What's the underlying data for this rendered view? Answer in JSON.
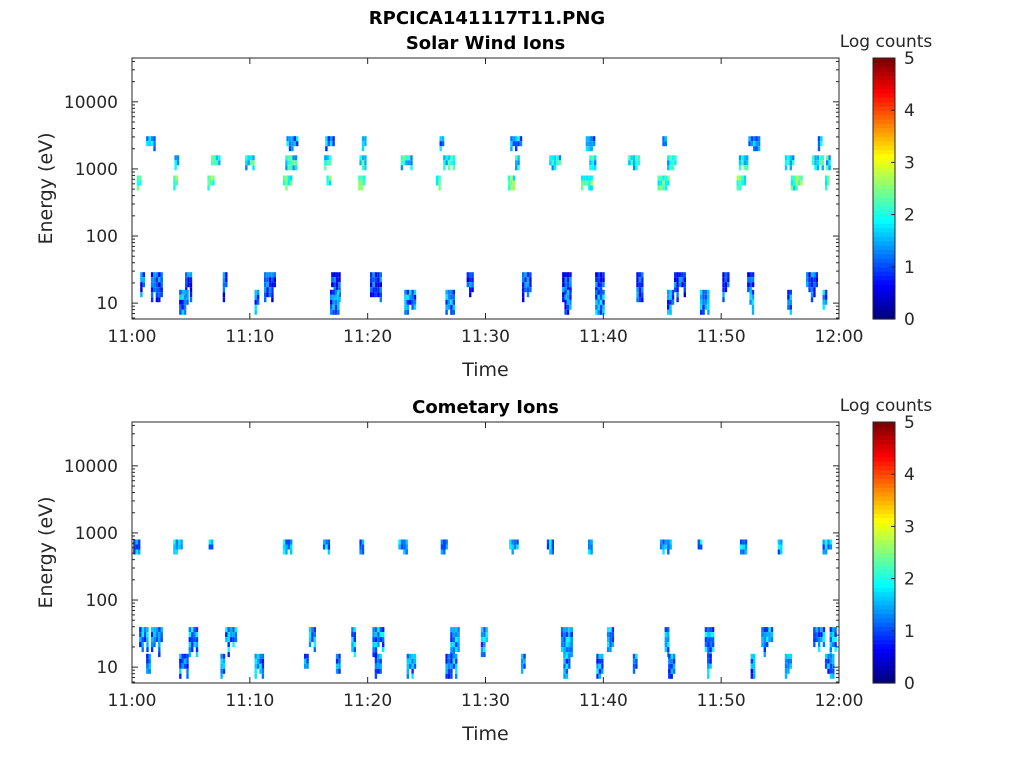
{
  "figure_title": "RPCICA141117T11.PNG",
  "chart_data": [
    {
      "type": "heatmap",
      "title": "Solar Wind Ions",
      "xlabel": "Time",
      "ylabel": "Energy (eV)",
      "x_ticks": [
        "11:00",
        "11:10",
        "11:20",
        "11:30",
        "11:40",
        "11:50",
        "12:00"
      ],
      "x_range_minutes": [
        0,
        60
      ],
      "y_ticks": [
        "10",
        "100",
        "1000",
        "10000"
      ],
      "y_range_eV": [
        5.8,
        45000
      ],
      "y_scale": "log",
      "colorbar": {
        "label": "Log counts",
        "ticks": [
          "0",
          "1",
          "2",
          "3",
          "4",
          "5"
        ],
        "range": [
          0,
          5
        ],
        "colormap": "jet"
      },
      "bands": [
        {
          "energy_eV": 650,
          "level": 2.3,
          "times_min": [
            0.4,
            3.5,
            6.4,
            12.8,
            16.5,
            19.2,
            25.8,
            31.9,
            38.1,
            44.6,
            51.3,
            55.9,
            58.8
          ]
        },
        {
          "energy_eV": 1300,
          "level": 1.9,
          "times_min": [
            3.6,
            6.7,
            9.6,
            13.0,
            16.3,
            19.3,
            22.8,
            26.4,
            32.5,
            35.4,
            38.8,
            42.1,
            45.4,
            51.5,
            55.4,
            57.7,
            58.9
          ]
        },
        {
          "energy_eV": 2500,
          "level": 1.4,
          "times_min": [
            1.2,
            13.1,
            16.4,
            19.5,
            26.1,
            32.1,
            38.5,
            45.0,
            52.3,
            58.2
          ]
        },
        {
          "energy_eV": 22,
          "level": 1.0,
          "times_min": [
            0.7,
            1.6,
            4.5,
            7.7,
            11.2,
            16.9,
            20.2,
            28.4,
            33.1,
            36.5,
            39.3,
            42.8,
            46.0,
            50.1,
            52.2,
            57.2
          ]
        },
        {
          "energy_eV": 12,
          "level": 1.3,
          "times_min": [
            4.0,
            10.4,
            16.8,
            23.1,
            26.6,
            36.7,
            39.3,
            45.4,
            48.2,
            52.4,
            55.6,
            58.6
          ]
        }
      ]
    },
    {
      "type": "heatmap",
      "title": "Cometary Ions",
      "xlabel": "Time",
      "ylabel": "Energy (eV)",
      "x_ticks": [
        "11:00",
        "11:10",
        "11:20",
        "11:30",
        "11:40",
        "11:50",
        "12:00"
      ],
      "x_range_minutes": [
        0,
        60
      ],
      "y_ticks": [
        "10",
        "100",
        "1000",
        "10000"
      ],
      "y_range_eV": [
        5.8,
        45000
      ],
      "y_scale": "log",
      "colorbar": {
        "label": "Log counts",
        "ticks": [
          "0",
          "1",
          "2",
          "3",
          "4",
          "5"
        ],
        "range": [
          0,
          5
        ],
        "colormap": "jet"
      },
      "bands": [
        {
          "energy_eV": 650,
          "level": 1.5,
          "times_min": [
            0.1,
            3.5,
            6.5,
            12.8,
            16.2,
            19.3,
            22.6,
            26.2,
            32.0,
            35.2,
            38.7,
            44.8,
            48.0,
            51.6,
            54.8,
            58.6
          ]
        },
        {
          "energy_eV": 30,
          "level": 1.4,
          "times_min": [
            0.6,
            1.6,
            4.8,
            7.9,
            15.0,
            18.6,
            20.4,
            27.0,
            29.6,
            36.4,
            40.3,
            45.2,
            48.6,
            53.4,
            57.8,
            59.2
          ]
        },
        {
          "energy_eV": 12,
          "level": 1.3,
          "times_min": [
            1.2,
            4.0,
            7.5,
            10.4,
            14.6,
            17.3,
            20.6,
            23.3,
            26.6,
            33.0,
            36.6,
            39.4,
            42.5,
            45.5,
            48.8,
            52.5,
            55.4,
            58.8
          ]
        }
      ]
    }
  ]
}
